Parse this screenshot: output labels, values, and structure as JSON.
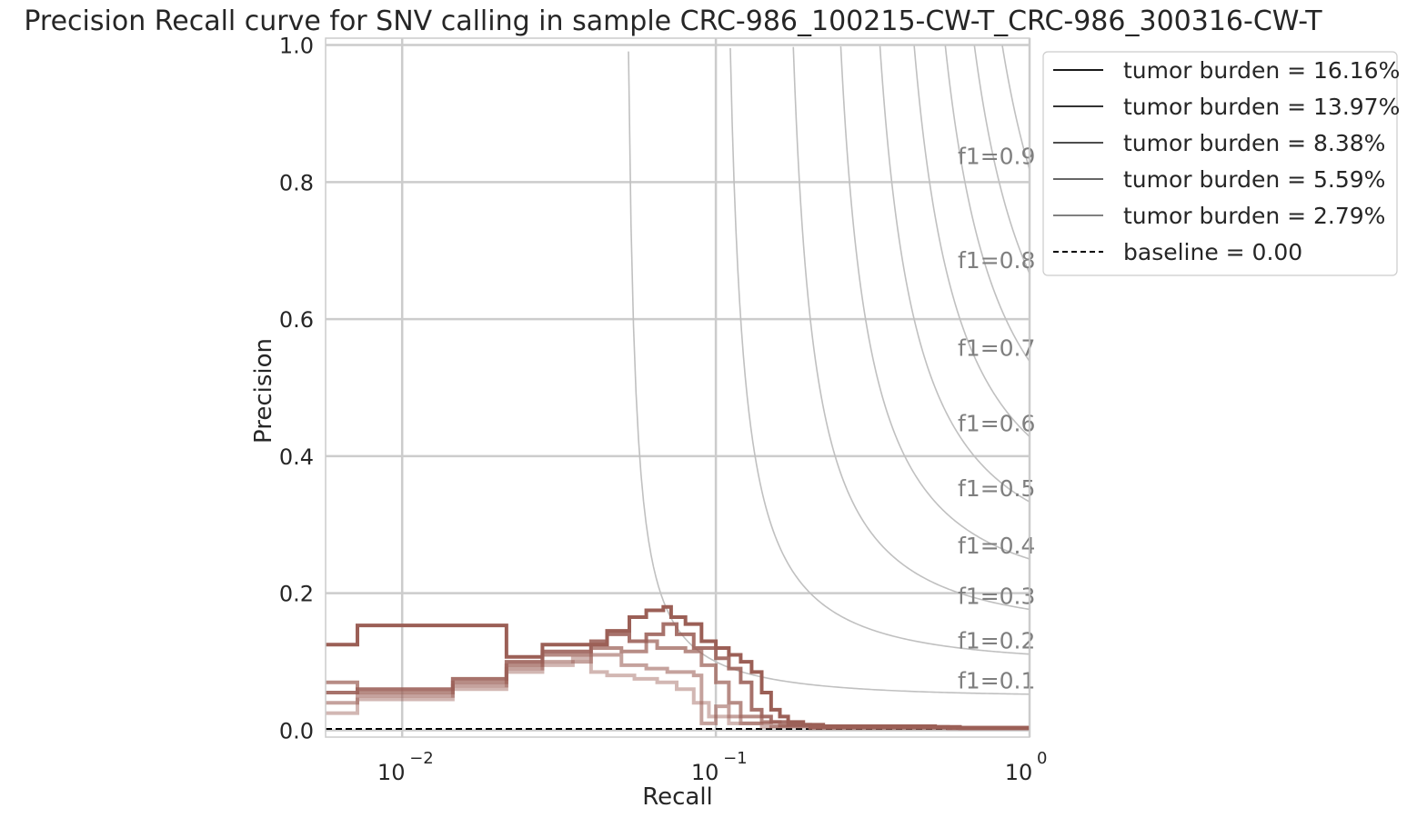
{
  "chart_data": {
    "type": "line",
    "title": "Precision Recall curve for SNV calling in sample CRC-986_100215-CW-T_CRC-986_300316-CW-T",
    "xlabel": "Recall",
    "ylabel": "Precision",
    "xscale": "log",
    "xlim": [
      0.0057,
      1.0
    ],
    "ylim": [
      -0.01,
      1.01
    ],
    "xticks": [
      {
        "value": 0.01,
        "base": "10",
        "exp": "−2"
      },
      {
        "value": 0.1,
        "base": "10",
        "exp": "−1"
      },
      {
        "value": 1.0,
        "base": "10",
        "exp": "0"
      }
    ],
    "yticks": [
      "0.0",
      "0.2",
      "0.4",
      "0.6",
      "0.8",
      "1.0"
    ],
    "grid": true,
    "legend_position": "outside-top-right",
    "iso_f1": {
      "values": [
        0.1,
        0.2,
        0.3,
        0.4,
        0.5,
        0.6,
        0.7,
        0.8,
        0.9
      ],
      "labels": [
        "f1=0.1",
        "f1=0.2",
        "f1=0.3",
        "f1=0.4",
        "f1=0.5",
        "f1=0.6",
        "f1=0.7",
        "f1=0.8",
        "f1=0.9"
      ],
      "color": "#c0c0c0"
    },
    "series": [
      {
        "name": "tumor burden = 16.16%",
        "color": "#9b5f56",
        "opacity": 1.0,
        "points": [
          [
            0.0057,
            0.125
          ],
          [
            0.0072,
            0.125
          ],
          [
            0.0072,
            0.153
          ],
          [
            0.0215,
            0.153
          ],
          [
            0.0215,
            0.107
          ],
          [
            0.028,
            0.107
          ],
          [
            0.028,
            0.125
          ],
          [
            0.045,
            0.125
          ],
          [
            0.045,
            0.145
          ],
          [
            0.053,
            0.145
          ],
          [
            0.053,
            0.165
          ],
          [
            0.06,
            0.165
          ],
          [
            0.06,
            0.175
          ],
          [
            0.068,
            0.175
          ],
          [
            0.068,
            0.18
          ],
          [
            0.072,
            0.18
          ],
          [
            0.072,
            0.165
          ],
          [
            0.08,
            0.165
          ],
          [
            0.08,
            0.155
          ],
          [
            0.09,
            0.155
          ],
          [
            0.09,
            0.13
          ],
          [
            0.1,
            0.13
          ],
          [
            0.1,
            0.12
          ],
          [
            0.11,
            0.12
          ],
          [
            0.11,
            0.11
          ],
          [
            0.12,
            0.11
          ],
          [
            0.12,
            0.1
          ],
          [
            0.13,
            0.1
          ],
          [
            0.13,
            0.085
          ],
          [
            0.14,
            0.085
          ],
          [
            0.14,
            0.055
          ],
          [
            0.15,
            0.055
          ],
          [
            0.15,
            0.03
          ],
          [
            0.16,
            0.03
          ],
          [
            0.16,
            0.02
          ],
          [
            0.17,
            0.02
          ],
          [
            0.17,
            0.012
          ],
          [
            0.19,
            0.012
          ],
          [
            0.19,
            0.008
          ],
          [
            0.22,
            0.008
          ],
          [
            0.22,
            0.006
          ],
          [
            0.5,
            0.006
          ],
          [
            0.5,
            0.005
          ],
          [
            0.6,
            0.005
          ],
          [
            0.6,
            0.003
          ],
          [
            1.0,
            0.003
          ]
        ]
      },
      {
        "name": "tumor burden = 13.97%",
        "color": "#9b5f56",
        "opacity": 0.88,
        "points": [
          [
            0.0057,
            0.055
          ],
          [
            0.0072,
            0.055
          ],
          [
            0.0072,
            0.06
          ],
          [
            0.0145,
            0.06
          ],
          [
            0.0145,
            0.075
          ],
          [
            0.0215,
            0.075
          ],
          [
            0.0215,
            0.1
          ],
          [
            0.028,
            0.1
          ],
          [
            0.028,
            0.115
          ],
          [
            0.04,
            0.115
          ],
          [
            0.04,
            0.13
          ],
          [
            0.045,
            0.13
          ],
          [
            0.045,
            0.14
          ],
          [
            0.053,
            0.14
          ],
          [
            0.053,
            0.13
          ],
          [
            0.06,
            0.13
          ],
          [
            0.06,
            0.14
          ],
          [
            0.068,
            0.14
          ],
          [
            0.068,
            0.155
          ],
          [
            0.075,
            0.155
          ],
          [
            0.075,
            0.14
          ],
          [
            0.085,
            0.14
          ],
          [
            0.085,
            0.12
          ],
          [
            0.1,
            0.12
          ],
          [
            0.1,
            0.105
          ],
          [
            0.11,
            0.105
          ],
          [
            0.11,
            0.09
          ],
          [
            0.12,
            0.09
          ],
          [
            0.12,
            0.07
          ],
          [
            0.13,
            0.07
          ],
          [
            0.13,
            0.03
          ],
          [
            0.14,
            0.03
          ],
          [
            0.14,
            0.02
          ],
          [
            0.15,
            0.02
          ],
          [
            0.15,
            0.012
          ],
          [
            0.17,
            0.012
          ],
          [
            0.17,
            0.008
          ],
          [
            0.2,
            0.008
          ],
          [
            0.2,
            0.005
          ],
          [
            0.55,
            0.005
          ],
          [
            0.55,
            0.003
          ],
          [
            1.0,
            0.003
          ]
        ]
      },
      {
        "name": "tumor burden = 8.38%",
        "color": "#9b5f56",
        "opacity": 0.72,
        "points": [
          [
            0.0057,
            0.07
          ],
          [
            0.0072,
            0.07
          ],
          [
            0.0072,
            0.055
          ],
          [
            0.0145,
            0.055
          ],
          [
            0.0145,
            0.07
          ],
          [
            0.0215,
            0.07
          ],
          [
            0.0215,
            0.095
          ],
          [
            0.028,
            0.095
          ],
          [
            0.028,
            0.11
          ],
          [
            0.04,
            0.11
          ],
          [
            0.04,
            0.12
          ],
          [
            0.05,
            0.12
          ],
          [
            0.05,
            0.115
          ],
          [
            0.06,
            0.115
          ],
          [
            0.06,
            0.13
          ],
          [
            0.065,
            0.13
          ],
          [
            0.065,
            0.12
          ],
          [
            0.08,
            0.12
          ],
          [
            0.08,
            0.115
          ],
          [
            0.09,
            0.115
          ],
          [
            0.09,
            0.095
          ],
          [
            0.1,
            0.095
          ],
          [
            0.1,
            0.07
          ],
          [
            0.11,
            0.07
          ],
          [
            0.11,
            0.04
          ],
          [
            0.12,
            0.04
          ],
          [
            0.12,
            0.02
          ],
          [
            0.14,
            0.02
          ],
          [
            0.14,
            0.012
          ],
          [
            0.16,
            0.012
          ],
          [
            0.16,
            0.007
          ],
          [
            0.2,
            0.007
          ],
          [
            0.2,
            0.004
          ],
          [
            1.0,
            0.004
          ]
        ]
      },
      {
        "name": "tumor burden = 5.59%",
        "color": "#9b5f56",
        "opacity": 0.58,
        "points": [
          [
            0.0057,
            0.04
          ],
          [
            0.0072,
            0.04
          ],
          [
            0.0072,
            0.05
          ],
          [
            0.0145,
            0.05
          ],
          [
            0.0145,
            0.065
          ],
          [
            0.0215,
            0.065
          ],
          [
            0.0215,
            0.09
          ],
          [
            0.028,
            0.09
          ],
          [
            0.028,
            0.1
          ],
          [
            0.04,
            0.1
          ],
          [
            0.04,
            0.11
          ],
          [
            0.05,
            0.11
          ],
          [
            0.05,
            0.095
          ],
          [
            0.06,
            0.095
          ],
          [
            0.06,
            0.09
          ],
          [
            0.07,
            0.09
          ],
          [
            0.07,
            0.085
          ],
          [
            0.085,
            0.085
          ],
          [
            0.085,
            0.08
          ],
          [
            0.09,
            0.08
          ],
          [
            0.09,
            0.01
          ],
          [
            0.1,
            0.01
          ],
          [
            0.1,
            0.035
          ],
          [
            0.11,
            0.035
          ],
          [
            0.11,
            0.02
          ],
          [
            0.12,
            0.02
          ],
          [
            0.12,
            0.01
          ],
          [
            0.15,
            0.01
          ],
          [
            0.15,
            0.006
          ],
          [
            0.2,
            0.006
          ],
          [
            0.2,
            0.004
          ],
          [
            1.0,
            0.004
          ]
        ]
      },
      {
        "name": "tumor burden = 2.79%",
        "color": "#9b5f56",
        "opacity": 0.45,
        "points": [
          [
            0.0057,
            0.025
          ],
          [
            0.0072,
            0.025
          ],
          [
            0.0072,
            0.045
          ],
          [
            0.0145,
            0.045
          ],
          [
            0.0145,
            0.06
          ],
          [
            0.0215,
            0.06
          ],
          [
            0.0215,
            0.085
          ],
          [
            0.028,
            0.085
          ],
          [
            0.028,
            0.095
          ],
          [
            0.035,
            0.095
          ],
          [
            0.035,
            0.105
          ],
          [
            0.04,
            0.105
          ],
          [
            0.04,
            0.085
          ],
          [
            0.045,
            0.085
          ],
          [
            0.045,
            0.08
          ],
          [
            0.055,
            0.08
          ],
          [
            0.055,
            0.075
          ],
          [
            0.065,
            0.075
          ],
          [
            0.065,
            0.07
          ],
          [
            0.075,
            0.07
          ],
          [
            0.075,
            0.06
          ],
          [
            0.085,
            0.06
          ],
          [
            0.085,
            0.04
          ],
          [
            0.095,
            0.04
          ],
          [
            0.095,
            0.02
          ],
          [
            0.11,
            0.02
          ],
          [
            0.11,
            0.01
          ],
          [
            0.14,
            0.01
          ],
          [
            0.14,
            0.005
          ],
          [
            0.2,
            0.005
          ],
          [
            0.2,
            0.003
          ],
          [
            1.0,
            0.003
          ]
        ]
      },
      {
        "name": "baseline = 0.00",
        "color": "#000000",
        "dashed": true,
        "points": [
          [
            0.0057,
            0.002
          ],
          [
            1.0,
            0.002
          ]
        ]
      }
    ]
  }
}
